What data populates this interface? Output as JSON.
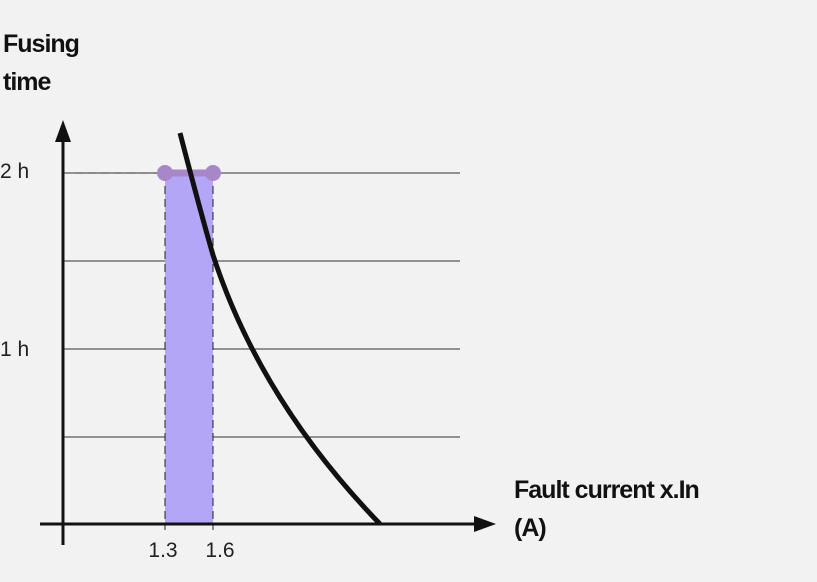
{
  "y_axis": {
    "title": [
      "Fusing",
      "time"
    ],
    "ticks": [
      "2 h",
      "1 h"
    ]
  },
  "x_axis": {
    "title": [
      "Fault current x.In",
      "(A)"
    ],
    "ticks": [
      "1.3",
      "1.6"
    ]
  }
}
